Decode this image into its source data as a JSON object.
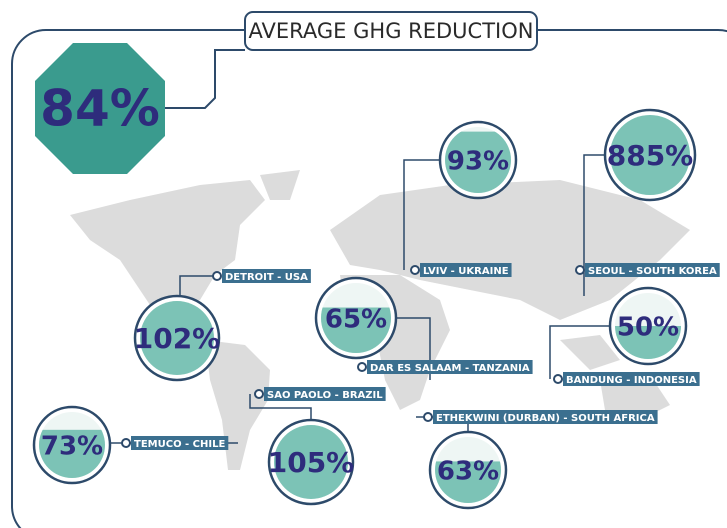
{
  "title": "AVERAGE GHG REDUCTION",
  "headline": {
    "value": 84,
    "value_label": "84%"
  },
  "cities": [
    {
      "label": "LVIV - UKRAINE",
      "value": 93,
      "value_label": "93%"
    },
    {
      "label": "SEOUL -  SOUTH KOREA",
      "value": 885,
      "value_label": "885%"
    },
    {
      "label": "DETROIT - USA",
      "value": 102,
      "value_label": "102%"
    },
    {
      "label": "DAR ES SALAAM - TANZANIA",
      "value": 65,
      "value_label": "65%"
    },
    {
      "label": "BANDUNG - INDONESIA",
      "value": 50,
      "value_label": "50%"
    },
    {
      "label": "TEMUCO - CHILE",
      "value": 73,
      "value_label": "73%"
    },
    {
      "label": "SAO PAOLO - BRAZIL",
      "value": 105,
      "value_label": "105%"
    },
    {
      "label": "ETHEKWINI (DURBAN) - SOUTH AFRICA",
      "value": 63,
      "value_label": "63%"
    }
  ]
}
